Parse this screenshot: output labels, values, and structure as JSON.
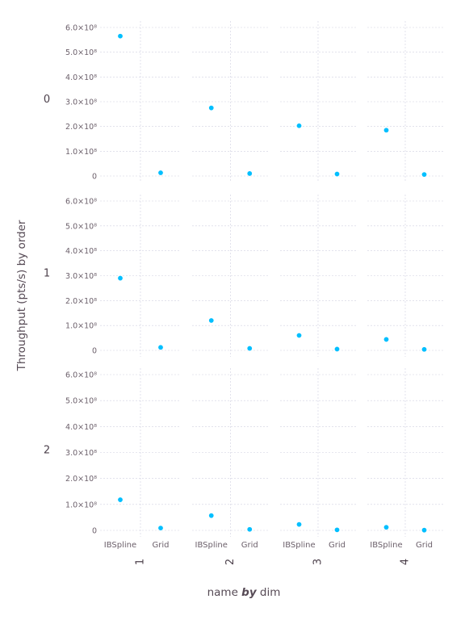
{
  "chart_data": {
    "type": "scatter",
    "ylabel": "Throughput (pts/s) by order",
    "xlabel_parts": [
      "name ",
      "by",
      " dim"
    ],
    "row_labels": [
      "0",
      "1",
      "2"
    ],
    "col_labels": [
      "1",
      "2",
      "3",
      "4"
    ],
    "categories": [
      "IBSpline",
      "Grid"
    ],
    "yticks": [
      0,
      100000000.0,
      200000000.0,
      300000000.0,
      400000000.0,
      500000000.0,
      600000000.0
    ],
    "ytick_labels": [
      "0",
      "1.0×10⁸",
      "2.0×10⁸",
      "3.0×10⁸",
      "4.0×10⁸",
      "5.0×10⁸",
      "6.0×10⁸"
    ],
    "ylim": [
      0,
      620000000.0
    ],
    "grid": true,
    "point_color": "#00bfff",
    "panels": [
      {
        "order": "0",
        "dim": "1",
        "values": [
          565000000.0,
          13000000.0
        ]
      },
      {
        "order": "0",
        "dim": "2",
        "values": [
          275000000.0,
          10000000.0
        ]
      },
      {
        "order": "0",
        "dim": "3",
        "values": [
          203000000.0,
          8000000.0
        ]
      },
      {
        "order": "0",
        "dim": "4",
        "values": [
          185000000.0,
          6000000.0
        ]
      },
      {
        "order": "1",
        "dim": "1",
        "values": [
          290000000.0,
          12000000.0
        ]
      },
      {
        "order": "1",
        "dim": "2",
        "values": [
          120000000.0,
          8000000.0
        ]
      },
      {
        "order": "1",
        "dim": "3",
        "values": [
          60000000.0,
          5000000.0
        ]
      },
      {
        "order": "1",
        "dim": "4",
        "values": [
          44000000.0,
          4000000.0
        ]
      },
      {
        "order": "2",
        "dim": "1",
        "values": [
          118000000.0,
          9000000.0
        ]
      },
      {
        "order": "2",
        "dim": "2",
        "values": [
          57000000.0,
          4000000.0
        ]
      },
      {
        "order": "2",
        "dim": "3",
        "values": [
          23000000.0,
          2000000.0
        ]
      },
      {
        "order": "2",
        "dim": "4",
        "values": [
          12000000.0,
          1000000.0
        ]
      }
    ]
  }
}
